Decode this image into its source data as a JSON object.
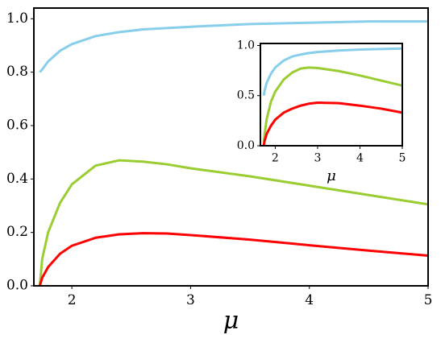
{
  "chart_data": [
    {
      "type": "line",
      "xlabel": "μ",
      "x": [
        1.73,
        1.75,
        1.8,
        1.9,
        2.0,
        2.2,
        2.4,
        2.6,
        2.8,
        3.0,
        3.5,
        4.0,
        4.5,
        5.0
      ],
      "series": [
        {
          "color": "#87ceeb",
          "values": [
            0.8,
            0.81,
            0.84,
            0.88,
            0.905,
            0.935,
            0.95,
            0.96,
            0.965,
            0.97,
            0.98,
            0.985,
            0.99,
            0.99
          ]
        },
        {
          "color": "#9acd32",
          "values": [
            0,
            0.1,
            0.2,
            0.31,
            0.38,
            0.45,
            0.47,
            0.465,
            0.455,
            0.44,
            0.41,
            0.375,
            0.34,
            0.305
          ]
        },
        {
          "color": "#ff0000",
          "values": [
            0,
            0.03,
            0.07,
            0.12,
            0.15,
            0.18,
            0.193,
            0.197,
            0.196,
            0.19,
            0.173,
            0.152,
            0.132,
            0.113
          ]
        }
      ],
      "xlim": [
        1.68,
        5
      ],
      "ylim": [
        0,
        1.04
      ],
      "xticks": [
        2,
        3,
        4,
        5
      ],
      "yticks": [
        {
          "value": 0,
          "label": "0.0"
        },
        0.2,
        0.4,
        0.6,
        0.8,
        {
          "value": 1,
          "label": "1.0"
        }
      ]
    },
    {
      "type": "line",
      "xlabel": "μ",
      "x": [
        1.73,
        1.75,
        1.8,
        1.9,
        2.0,
        2.2,
        2.4,
        2.6,
        2.8,
        3.0,
        3.5,
        4.0,
        4.5,
        5.0
      ],
      "series": [
        {
          "color": "#87ceeb",
          "values": [
            0.5,
            0.55,
            0.63,
            0.72,
            0.78,
            0.85,
            0.89,
            0.91,
            0.925,
            0.935,
            0.95,
            0.96,
            0.965,
            0.97
          ]
        },
        {
          "color": "#9acd32",
          "values": [
            0,
            0.12,
            0.27,
            0.44,
            0.54,
            0.66,
            0.73,
            0.77,
            0.78,
            0.775,
            0.745,
            0.7,
            0.65,
            0.6
          ]
        },
        {
          "color": "#ff0000",
          "values": [
            0,
            0.05,
            0.12,
            0.2,
            0.26,
            0.33,
            0.37,
            0.4,
            0.42,
            0.43,
            0.425,
            0.4,
            0.37,
            0.33
          ]
        }
      ],
      "xlim": [
        1.65,
        5
      ],
      "ylim": [
        0,
        1.02
      ],
      "xticks": [
        2,
        3,
        4,
        5
      ],
      "yticks": [
        {
          "value": 0,
          "label": "0.0"
        },
        0.5,
        {
          "value": 1,
          "label": "1.0"
        }
      ]
    }
  ]
}
